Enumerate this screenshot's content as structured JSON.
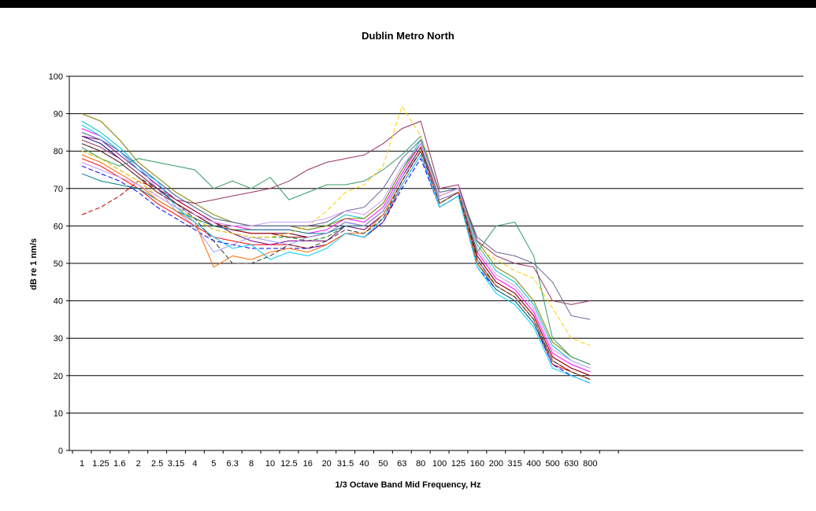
{
  "chart_data": {
    "type": "line",
    "title": "Dublin Metro North",
    "xlabel": "1/3 Octave Band Mid Frequency, Hz",
    "ylabel": "dB re 1 nm/s",
    "ylim": [
      0,
      100
    ],
    "yticks": [
      0,
      10,
      20,
      30,
      40,
      50,
      60,
      70,
      80,
      90,
      100
    ],
    "grid": true,
    "legend": "none",
    "categories": [
      "1",
      "1.25",
      "1.6",
      "2",
      "2.5",
      "3.15",
      "4",
      "5",
      "6.3",
      "8",
      "10",
      "12.5",
      "16",
      "20",
      "31.5",
      "40",
      "50",
      "63",
      "80",
      "100",
      "125",
      "160",
      "200",
      "315",
      "400",
      "500",
      "630",
      "800"
    ],
    "series": [
      {
        "values": [
          84,
          82,
          78,
          74,
          70,
          66,
          63,
          60,
          59,
          58,
          58,
          58,
          57,
          58,
          61,
          60,
          64,
          73,
          81,
          67,
          69,
          52,
          45,
          42,
          36,
          25,
          22,
          20
        ]
      },
      {
        "values": [
          86,
          84,
          80,
          75,
          71,
          67,
          64,
          61,
          60,
          59,
          59,
          59,
          58,
          59,
          62,
          61,
          65,
          74,
          82,
          68,
          70,
          53,
          46,
          43,
          37,
          26,
          23,
          21
        ]
      },
      {
        "values": [
          80,
          78,
          75,
          72,
          68,
          65,
          62,
          59,
          58,
          57,
          57,
          57,
          56,
          57,
          60,
          59,
          63,
          72,
          80,
          66,
          69,
          51,
          44,
          41,
          35,
          24,
          21,
          19
        ]
      },
      {
        "values": [
          82,
          80,
          77,
          73,
          69,
          66,
          63,
          60,
          59,
          58,
          58,
          57,
          57,
          58,
          61,
          60,
          64,
          73,
          81,
          67,
          69,
          52,
          45,
          42,
          36,
          25,
          22,
          20
        ]
      },
      {
        "values": [
          88,
          85,
          81,
          76,
          72,
          68,
          65,
          62,
          61,
          60,
          60,
          60,
          59,
          60,
          63,
          62,
          66,
          75,
          83,
          69,
          70,
          55,
          48,
          45,
          39,
          28,
          24,
          22
        ]
      },
      {
        "values": [
          78,
          76,
          73,
          70,
          66,
          63,
          60,
          57,
          56,
          55,
          55,
          55,
          54,
          55,
          58,
          57,
          61,
          71,
          79,
          65,
          68,
          50,
          43,
          40,
          34,
          23,
          21,
          19
        ]
      },
      {
        "values": [
          76,
          74,
          72,
          69,
          65,
          62,
          59,
          56,
          55,
          54,
          54,
          54,
          54,
          55,
          58,
          57,
          61,
          70,
          78,
          65,
          68,
          49,
          43,
          40,
          34,
          23,
          20,
          18
        ]
      },
      {
        "values": [
          90,
          88,
          83,
          77,
          73,
          69,
          66,
          63,
          61,
          60,
          60,
          60,
          59,
          60,
          62,
          62,
          66,
          75,
          82,
          68,
          70,
          56,
          49,
          46,
          40,
          29,
          25,
          23
        ]
      },
      {
        "values": [
          84,
          83,
          79,
          75,
          71,
          67,
          64,
          61,
          58,
          56,
          55,
          56,
          56,
          56,
          60,
          59,
          63,
          72,
          80,
          66,
          69,
          51,
          44,
          41,
          35,
          24,
          21,
          19
        ]
      },
      {
        "values": [
          74,
          72,
          71,
          70,
          67,
          64,
          62,
          60,
          59,
          59,
          59,
          59,
          58,
          58,
          60,
          60,
          64,
          73,
          81,
          66,
          69,
          50,
          43,
          40,
          34,
          24,
          21,
          19
        ]
      },
      {
        "values": [
          63,
          65,
          68,
          72,
          70,
          67,
          64,
          61,
          59,
          58,
          58,
          58,
          57,
          58,
          61,
          60,
          64,
          73,
          81,
          67,
          69,
          52,
          45,
          42,
          36,
          25,
          22,
          20
        ]
      },
      {
        "values": [
          85,
          83,
          80,
          76,
          70,
          64,
          60,
          53,
          55,
          57,
          56,
          55,
          57,
          58,
          61,
          60,
          64,
          73,
          80,
          67,
          69,
          51,
          44,
          41,
          35,
          24,
          21,
          19
        ]
      },
      {
        "values": [
          81,
          78,
          76,
          78,
          77,
          76,
          75,
          70,
          72,
          70,
          73,
          67,
          69,
          71,
          71,
          72,
          75,
          79,
          84,
          69,
          70,
          53,
          60,
          61,
          52,
          30,
          25,
          23
        ]
      },
      {
        "values": [
          83,
          81,
          78,
          74,
          70,
          67,
          66,
          67,
          68,
          69,
          70,
          72,
          75,
          77,
          78,
          79,
          82,
          86,
          88,
          70,
          71,
          56,
          52,
          50,
          49,
          40,
          39,
          40
        ]
      },
      {
        "values": [
          80,
          78,
          75,
          72,
          68,
          65,
          62,
          59,
          58,
          57,
          57,
          58,
          60,
          64,
          69,
          71,
          76,
          92,
          84,
          68,
          70,
          54,
          51,
          48,
          46,
          38,
          30,
          28
        ]
      },
      {
        "values": [
          85,
          83,
          80,
          76,
          72,
          68,
          65,
          62,
          61,
          60,
          60,
          60,
          60,
          61,
          64,
          65,
          70,
          78,
          83,
          69,
          70,
          57,
          53,
          52,
          50,
          45,
          36,
          35
        ]
      },
      {
        "values": [
          79,
          77,
          74,
          71,
          67,
          64,
          61,
          49,
          52,
          51,
          53,
          54,
          53,
          55,
          58,
          58,
          63,
          72,
          80,
          66,
          69,
          50,
          44,
          41,
          35,
          24,
          21,
          19
        ]
      },
      {
        "values": [
          87,
          84,
          80,
          75,
          72,
          65,
          61,
          57,
          54,
          55,
          51,
          53,
          52,
          54,
          58,
          57,
          62,
          71,
          79,
          65,
          68,
          49,
          42,
          39,
          33,
          22,
          20,
          18
        ]
      },
      {
        "values": [
          82,
          80,
          77,
          73,
          70,
          66,
          62,
          56,
          50,
          50,
          52,
          55,
          54,
          56,
          59,
          58,
          62,
          72,
          80,
          66,
          69,
          51,
          44,
          41,
          35,
          24,
          21,
          19
        ]
      },
      {
        "values": [
          77,
          75,
          73,
          71,
          68,
          65,
          63,
          61,
          60,
          60,
          61,
          61,
          61,
          62,
          64,
          63,
          67,
          76,
          82,
          68,
          70,
          54,
          47,
          44,
          38,
          27,
          24,
          22
        ]
      }
    ],
    "colors": [
      "#000080",
      "#ff00ff",
      "#008000",
      "#800000",
      "#00c0c0",
      "#ff0000",
      "#0000ff",
      "#808000",
      "#800080",
      "#008080",
      "#c00000",
      "#9999ff",
      "#339966",
      "#993366",
      "#ffcc00",
      "#666699",
      "#ff6600",
      "#00ccff",
      "#333333",
      "#cc99ff"
    ]
  }
}
